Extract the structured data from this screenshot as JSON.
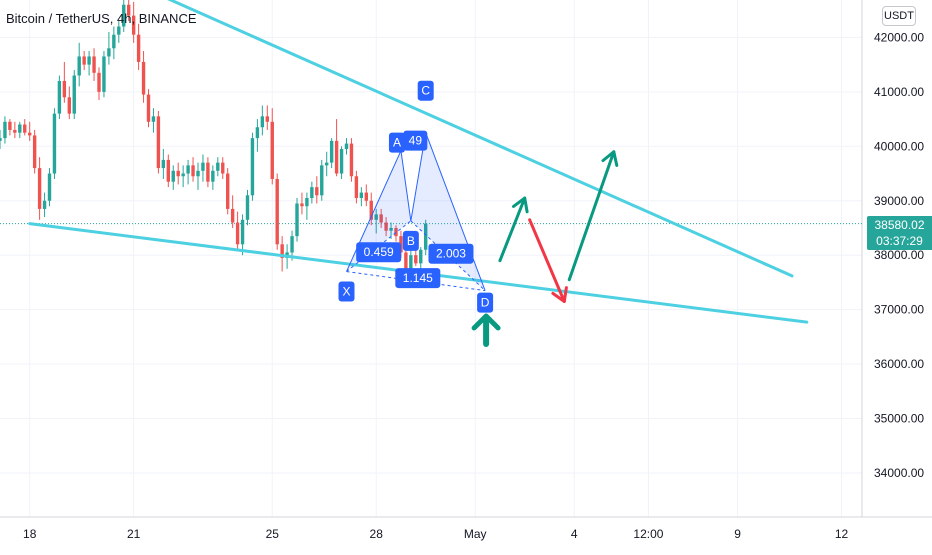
{
  "header": {
    "symbol_title": "Bitcoin / TetherUS, 4h, BINANCE",
    "currency_badge": "USDT"
  },
  "price_tag": {
    "price": "38580.02",
    "countdown": "03:37:29"
  },
  "colors": {
    "up": "#26a69a",
    "down": "#ef5350",
    "trendline": "#4dd0e1",
    "pattern": "#2962ff",
    "pattern_fill": "#2962ff",
    "arrow_up": "#089981",
    "arrow_down": "#f23645"
  },
  "chart_data": {
    "type": "candlestick",
    "title": "Bitcoin / TetherUS, 4h, BINANCE",
    "y_axis": {
      "ticks": [
        "42000.00",
        "41000.00",
        "40000.00",
        "39000.00",
        "38000.00",
        "37000.00",
        "36000.00",
        "35000.00",
        "34000.00"
      ],
      "tick_values": [
        42000,
        41000,
        40000,
        39000,
        38000,
        37000,
        36000,
        35000,
        34000
      ],
      "ylim": [
        33000,
        42800
      ],
      "scale": "linear",
      "position": "right"
    },
    "x_axis": {
      "ticks": [
        "18",
        "21",
        "25",
        "28",
        "May",
        "4",
        "12:00",
        "9",
        "12"
      ],
      "tick_index": [
        6,
        27,
        55,
        76,
        96,
        116,
        131,
        149,
        170
      ]
    },
    "last_price": 38580.02,
    "candles": [
      [
        40100,
        40300,
        39950,
        40150
      ],
      [
        40150,
        40550,
        40050,
        40450
      ],
      [
        40450,
        40500,
        40200,
        40300
      ],
      [
        40300,
        40450,
        40150,
        40250
      ],
      [
        40250,
        40450,
        40150,
        40400
      ],
      [
        40400,
        40500,
        40200,
        40250
      ],
      [
        40250,
        40450,
        40100,
        40200
      ],
      [
        40200,
        40300,
        39500,
        39600
      ],
      [
        39600,
        39800,
        38650,
        38850
      ],
      [
        38850,
        39150,
        38700,
        39000
      ],
      [
        39000,
        39600,
        38900,
        39500
      ],
      [
        39500,
        40700,
        39400,
        40600
      ],
      [
        40600,
        41300,
        40500,
        41200
      ],
      [
        41200,
        41550,
        40800,
        40900
      ],
      [
        40900,
        41100,
        40500,
        40600
      ],
      [
        40600,
        41400,
        40500,
        41300
      ],
      [
        41300,
        41900,
        41100,
        41650
      ],
      [
        41650,
        41750,
        41400,
        41500
      ],
      [
        41500,
        41750,
        41300,
        41650
      ],
      [
        41650,
        41800,
        41200,
        41350
      ],
      [
        41350,
        41450,
        40850,
        41000
      ],
      [
        41000,
        41750,
        40900,
        41650
      ],
      [
        41650,
        42100,
        41500,
        41800
      ],
      [
        41800,
        42200,
        41600,
        42050
      ],
      [
        42050,
        42300,
        41900,
        42200
      ],
      [
        42200,
        42750,
        42100,
        42600
      ],
      [
        42600,
        42850,
        42300,
        42400
      ],
      [
        42400,
        42650,
        41900,
        42050
      ],
      [
        42050,
        42250,
        41400,
        41550
      ],
      [
        41550,
        41750,
        40800,
        40950
      ],
      [
        40950,
        41050,
        40350,
        40450
      ],
      [
        40450,
        40700,
        40250,
        40550
      ],
      [
        40550,
        40650,
        39500,
        39600
      ],
      [
        39600,
        39950,
        39400,
        39750
      ],
      [
        39750,
        39850,
        39250,
        39350
      ],
      [
        39350,
        39650,
        39200,
        39550
      ],
      [
        39550,
        39700,
        39300,
        39450
      ],
      [
        39450,
        39650,
        39250,
        39500
      ],
      [
        39500,
        39750,
        39300,
        39650
      ],
      [
        39650,
        39800,
        39350,
        39450
      ],
      [
        39450,
        39700,
        39200,
        39550
      ],
      [
        39550,
        39850,
        39350,
        39700
      ],
      [
        39700,
        39800,
        39250,
        39350
      ],
      [
        39350,
        39650,
        39200,
        39550
      ],
      [
        39550,
        39800,
        39450,
        39700
      ],
      [
        39700,
        39800,
        39400,
        39500
      ],
      [
        39500,
        39600,
        38750,
        38850
      ],
      [
        38850,
        39100,
        38500,
        38600
      ],
      [
        38600,
        38800,
        38100,
        38200
      ],
      [
        38200,
        38750,
        38000,
        38650
      ],
      [
        38650,
        39200,
        38550,
        39100
      ],
      [
        39100,
        40250,
        39000,
        40150
      ],
      [
        40150,
        40500,
        39900,
        40350
      ],
      [
        40350,
        40750,
        40200,
        40550
      ],
      [
        40550,
        40750,
        40300,
        40450
      ],
      [
        40450,
        40700,
        39300,
        39400
      ],
      [
        39400,
        39500,
        38100,
        38200
      ],
      [
        38200,
        38350,
        37700,
        37950
      ],
      [
        37950,
        38200,
        37750,
        38050
      ],
      [
        38050,
        38450,
        37900,
        38350
      ],
      [
        38350,
        39050,
        38250,
        38950
      ],
      [
        38950,
        39150,
        38750,
        38900
      ],
      [
        38900,
        39150,
        38650,
        39050
      ],
      [
        39050,
        39350,
        38950,
        39250
      ],
      [
        39250,
        39450,
        38950,
        39100
      ],
      [
        39100,
        39750,
        39000,
        39650
      ],
      [
        39650,
        39900,
        39450,
        39700
      ],
      [
        39700,
        40150,
        39600,
        40100
      ],
      [
        40100,
        40500,
        39450,
        39500
      ],
      [
        39500,
        40000,
        39400,
        39950
      ],
      [
        39950,
        40150,
        39850,
        40050
      ],
      [
        40050,
        40150,
        39350,
        39450
      ],
      [
        39450,
        39550,
        38950,
        39050
      ],
      [
        39050,
        39250,
        38900,
        39150
      ],
      [
        39150,
        39300,
        38900,
        39000
      ],
      [
        39000,
        39150,
        38550,
        38650
      ],
      [
        38650,
        38850,
        38400,
        38750
      ],
      [
        38750,
        38850,
        38500,
        38600
      ],
      [
        38600,
        38700,
        38350,
        38450
      ],
      [
        38450,
        38600,
        38300,
        38500
      ],
      [
        38500,
        38550,
        38250,
        38350
      ],
      [
        38350,
        38450,
        37950,
        38050
      ],
      [
        38050,
        38150,
        37500,
        37650
      ],
      [
        37650,
        38100,
        37600,
        38000
      ],
      [
        38000,
        38150,
        37800,
        37850
      ],
      [
        37850,
        38150,
        37750,
        38100
      ],
      [
        38100,
        38650,
        38000,
        38580
      ]
    ],
    "trendlines": [
      {
        "name": "upper-trendline",
        "from": {
          "i": 28,
          "price": 42950
        },
        "to": {
          "i": 160,
          "price": 37620
        }
      },
      {
        "name": "lower-trendline",
        "from": {
          "i": 6,
          "price": 38580
        },
        "to": {
          "i": 163,
          "price": 36770
        }
      }
    ],
    "harmonic_pattern": {
      "points": {
        "X": {
          "i": 70,
          "price": 37700
        },
        "A": {
          "i": 81,
          "price": 39920
        },
        "B": {
          "i": 83,
          "price": 38630
        },
        "C": {
          "i": 86,
          "price": 40250
        },
        "D": {
          "i": 98,
          "price": 37350
        }
      },
      "ratios": [
        {
          "label": "0.459",
          "position": "XB"
        },
        {
          "label": "1.145",
          "position": "XD"
        },
        {
          "label": "2.003",
          "position": "BD"
        },
        {
          "label": "49",
          "position": "AC"
        }
      ]
    },
    "projection_arrows": [
      {
        "color": "up",
        "path": [
          [
            101,
            37900
          ],
          [
            106,
            39050
          ]
        ]
      },
      {
        "color": "down",
        "path": [
          [
            107,
            38650
          ],
          [
            114,
            37150
          ]
        ]
      },
      {
        "color": "up",
        "path": [
          [
            115,
            37550
          ],
          [
            124,
            39900
          ]
        ]
      }
    ],
    "bottom_marker": {
      "i": 98,
      "price": 36700,
      "direction": "up"
    }
  }
}
